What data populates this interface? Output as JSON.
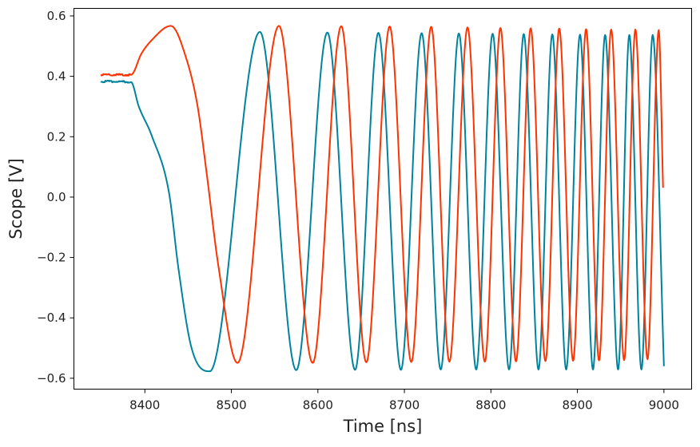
{
  "chart_data": {
    "type": "line",
    "title": "",
    "xlabel": "Time [ns]",
    "ylabel": "Scope [V]",
    "xlim": [
      8318,
      9032
    ],
    "ylim": [
      -0.636,
      0.625
    ],
    "xticks": [
      8400,
      8500,
      8600,
      8700,
      8800,
      8900,
      9000
    ],
    "xtick_labels": [
      "8400",
      "8500",
      "8600",
      "8700",
      "8800",
      "8900",
      "9000"
    ],
    "yticks": [
      0.6,
      0.4,
      0.2,
      0.0,
      -0.2,
      -0.4,
      -0.6
    ],
    "ytick_labels": [
      "0.6",
      "0.4",
      "0.2",
      "0.0",
      "−0.2",
      "−0.4",
      "−0.6"
    ],
    "grid": false,
    "series": [
      {
        "color": "#00849e",
        "x": [
          8349,
          8384,
          8393,
          8408,
          8428,
          8439,
          8454,
          8475,
          8533,
          8575,
          8611,
          8643,
          8670,
          8696,
          8720,
          8742,
          8763,
          8783,
          8802,
          8821,
          8838,
          8855,
          8871,
          8887,
          8903,
          8918,
          8932,
          8947,
          8960,
          8974,
          8987,
          9000
        ],
        "y": [
          0.383,
          0.381,
          0.3,
          0.203,
          0.013,
          -0.24,
          -0.5,
          -0.577,
          0.547,
          -0.573,
          0.545,
          -0.572,
          0.544,
          -0.572,
          0.543,
          -0.571,
          0.542,
          -0.571,
          0.541,
          -0.571,
          0.54,
          -0.571,
          0.539,
          -0.571,
          0.538,
          -0.571,
          0.537,
          -0.571,
          0.537,
          -0.571,
          0.537,
          -0.56
        ]
      },
      {
        "color": "#ff3300",
        "x": [
          8349,
          8384,
          8396,
          8408,
          8430,
          8448,
          8461,
          8471,
          8485,
          8507,
          8555,
          8594,
          8627,
          8656,
          8683,
          8708,
          8731,
          8752,
          8773,
          8793,
          8811,
          8829,
          8846,
          8863,
          8879,
          8895,
          8910,
          8925,
          8939,
          8954,
          8967,
          8981,
          8994,
          8999
        ],
        "y": [
          0.405,
          0.405,
          0.475,
          0.52,
          0.567,
          0.458,
          0.3,
          0.089,
          -0.228,
          -0.549,
          0.567,
          -0.549,
          0.566,
          -0.547,
          0.565,
          -0.546,
          0.564,
          -0.545,
          0.562,
          -0.545,
          0.56,
          -0.544,
          0.559,
          -0.543,
          0.558,
          -0.542,
          0.556,
          -0.541,
          0.555,
          -0.54,
          0.555,
          -0.537,
          0.553,
          0.031
        ]
      }
    ]
  }
}
